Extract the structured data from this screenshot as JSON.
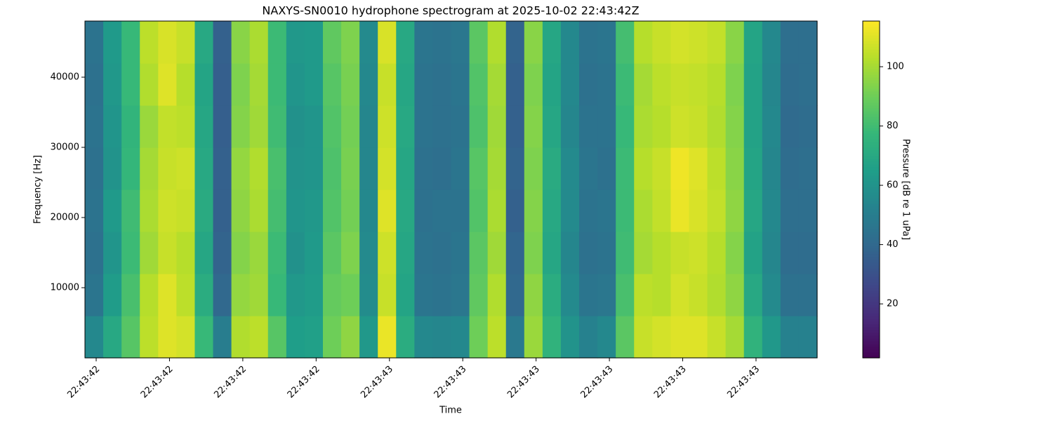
{
  "chart_data": {
    "type": "spectrogram",
    "title": "NAXYS-SN0010 hydrophone spectrogram at 2025-10-02 22:43:42Z",
    "xlabel": "Time",
    "ylabel": "Frequency [Hz]",
    "colorbar_label": "Pressure [dB re 1 uPa]",
    "colormap": "viridis",
    "xticks": [
      "22:43:42",
      "22:43:42",
      "22:43:42",
      "22:43:42",
      "22:43:43",
      "22:43:43",
      "22:43:43",
      "22:43:43",
      "22:43:43",
      "22:43:43"
    ],
    "ylim": [
      0,
      48000
    ],
    "yticks": [
      10000,
      20000,
      30000,
      40000
    ],
    "ybins": [
      0,
      6000,
      12000,
      18000,
      24000,
      30000,
      36000,
      42000,
      48000
    ],
    "clim": [
      1.8,
      115.4
    ],
    "cticks": [
      20,
      40,
      60,
      80,
      100
    ],
    "values": [
      [
        55,
        70,
        85,
        104,
        110,
        108,
        78,
        50,
        102,
        104,
        85,
        65,
        66,
        90,
        96,
        62,
        112,
        72,
        55,
        54,
        55,
        90,
        104,
        48,
        98,
        75,
        60,
        52,
        55,
        86,
        106,
        108,
        110,
        110,
        106,
        100,
        75,
        62,
        52,
        52
      ],
      [
        46,
        64,
        82,
        103,
        110,
        104,
        72,
        40,
        97,
        99,
        78,
        62,
        64,
        88,
        90,
        57,
        106,
        68,
        46,
        45,
        47,
        87,
        102,
        40,
        96,
        72,
        56,
        46,
        47,
        82,
        104,
        103,
        108,
        106,
        102,
        96,
        70,
        56,
        44,
        44
      ],
      [
        44,
        61,
        79,
        99,
        106,
        103,
        69,
        38,
        94,
        98,
        79,
        59,
        63,
        86,
        93,
        56,
        107,
        69,
        45,
        44,
        46,
        86,
        99,
        39,
        93,
        69,
        54,
        44,
        45,
        80,
        100,
        103,
        106,
        107,
        103,
        94,
        67,
        54,
        42,
        42
      ],
      [
        45,
        63,
        80,
        101,
        107,
        106,
        71,
        37,
        96,
        101,
        81,
        61,
        62,
        84,
        91,
        55,
        110,
        70,
        44,
        45,
        45,
        84,
        101,
        37,
        94,
        70,
        56,
        45,
        46,
        79,
        101,
        105,
        112,
        109,
        105,
        96,
        69,
        55,
        43,
        43
      ],
      [
        44,
        60,
        77,
        100,
        106,
        107,
        70,
        37,
        97,
        102,
        82,
        60,
        61,
        83,
        92,
        54,
        108,
        69,
        44,
        43,
        46,
        85,
        100,
        38,
        93,
        71,
        56,
        46,
        44,
        79,
        103,
        106,
        113,
        110,
        104,
        95,
        68,
        54,
        42,
        43
      ],
      [
        45,
        61,
        76,
        98,
        105,
        104,
        69,
        36,
        94,
        99,
        80,
        59,
        61,
        84,
        91,
        54,
        107,
        70,
        45,
        44,
        45,
        83,
        99,
        37,
        94,
        69,
        54,
        45,
        45,
        78,
        101,
        103,
        107,
        106,
        102,
        94,
        67,
        55,
        41,
        42
      ],
      [
        44,
        62,
        78,
        102,
        110,
        103,
        68,
        36,
        93,
        100,
        79,
        61,
        63,
        85,
        92,
        55,
        106,
        69,
        45,
        44,
        46,
        84,
        100,
        37,
        93,
        68,
        55,
        44,
        45,
        79,
        100,
        104,
        106,
        105,
        103,
        93,
        67,
        54,
        42,
        43
      ],
      [
        45,
        63,
        78,
        104,
        109,
        106,
        70,
        37,
        95,
        101,
        79,
        62,
        63,
        87,
        93,
        56,
        109,
        70,
        46,
        45,
        47,
        86,
        102,
        38,
        95,
        69,
        55,
        45,
        46,
        81,
        103,
        106,
        108,
        107,
        105,
        95,
        68,
        55,
        43,
        43
      ]
    ]
  }
}
